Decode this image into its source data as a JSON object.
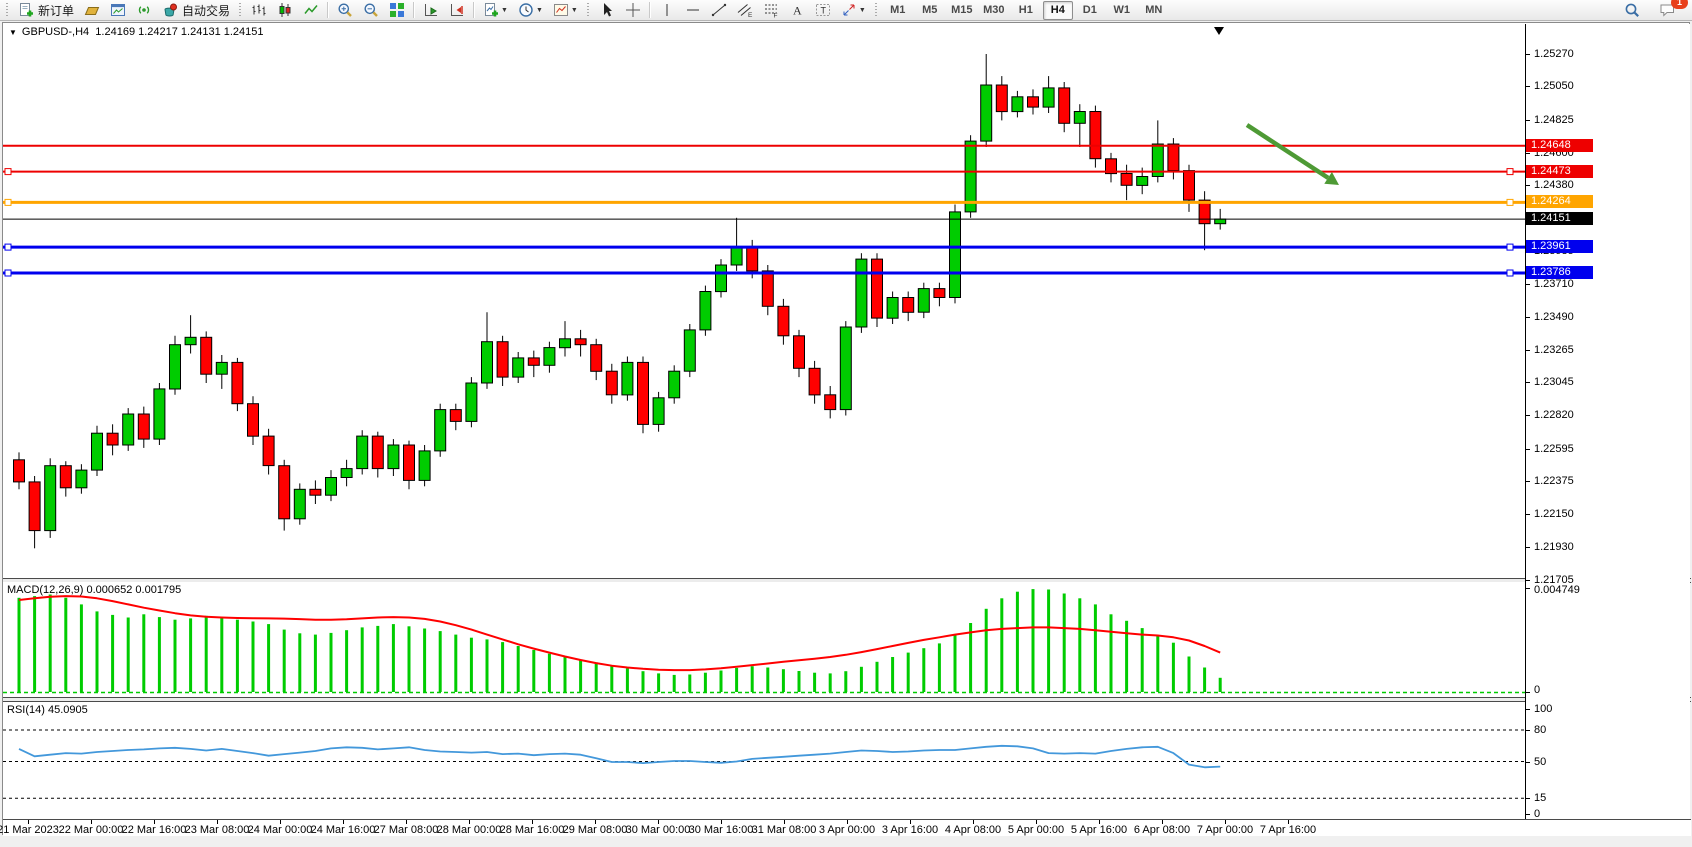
{
  "toolbar": {
    "groups": [
      {
        "items": [
          {
            "icon": "new-order",
            "label": "新订单"
          },
          {
            "icon": "profiles"
          },
          {
            "icon": "charts-window"
          },
          {
            "icon": "signal"
          },
          {
            "icon": "autotrading",
            "label": "自动交易"
          }
        ]
      },
      {
        "items": [
          {
            "icon": "chart-bars"
          },
          {
            "icon": "chart-candles"
          },
          {
            "icon": "chart-line"
          },
          {
            "sep": true
          },
          {
            "icon": "zoom-in"
          },
          {
            "icon": "zoom-out"
          },
          {
            "icon": "tile-windows"
          },
          {
            "sep": true
          },
          {
            "icon": "autoscroll"
          },
          {
            "icon": "chart-shift"
          },
          {
            "sep": true
          },
          {
            "icon": "new-chart",
            "dropdown": true
          },
          {
            "icon": "periods-clock",
            "dropdown": true
          },
          {
            "icon": "templates",
            "dropdown": true
          }
        ]
      },
      {
        "items": [
          {
            "icon": "cursor"
          },
          {
            "icon": "crosshair"
          },
          {
            "sep": true
          },
          {
            "icon": "vertical-line"
          },
          {
            "icon": "horizontal-line"
          },
          {
            "icon": "trendline"
          },
          {
            "icon": "equidistant-channel"
          },
          {
            "icon": "fibonacci"
          },
          {
            "icon": "text"
          },
          {
            "icon": "text-label"
          },
          {
            "icon": "arrows",
            "dropdown": true
          }
        ]
      }
    ],
    "timeframes": [
      {
        "label": "M1"
      },
      {
        "label": "M5"
      },
      {
        "label": "M15"
      },
      {
        "label": "M30"
      },
      {
        "label": "H1"
      },
      {
        "label": "H4",
        "active": true
      },
      {
        "label": "D1"
      },
      {
        "label": "W1"
      },
      {
        "label": "MN"
      }
    ],
    "right_icons": [
      {
        "icon": "search"
      },
      {
        "icon": "chat",
        "badge": "1"
      }
    ]
  },
  "chart_header": {
    "dropdown_glyph": "▼",
    "title": "GBPUSD-,H4",
    "ohlc_text": "1.24169 1.24217 1.24131 1.24151"
  },
  "chart_data": {
    "type": "candlestick",
    "symbol": "GBPUSD-",
    "timeframe": "H4",
    "ohlc": {
      "open": 1.24169,
      "high": 1.24217,
      "low": 1.24131,
      "close": 1.24151
    },
    "ylim": [
      1.21705,
      1.2527
    ],
    "y_ticks": [
      "1.25270",
      "1.25050",
      "1.24825",
      "1.24600",
      "1.24380",
      "1.24155",
      "1.23935",
      "1.23710",
      "1.23490",
      "1.23265",
      "1.23045",
      "1.22820",
      "1.22595",
      "1.22375",
      "1.22150",
      "1.21930",
      "1.21705"
    ],
    "x_labels": [
      "21 Mar 2023",
      "22 Mar 00:00",
      "22 Mar 16:00",
      "23 Mar 08:00",
      "24 Mar 00:00",
      "24 Mar 16:00",
      "27 Mar 08:00",
      "28 Mar 00:00",
      "28 Mar 16:00",
      "29 Mar 08:00",
      "30 Mar 00:00",
      "30 Mar 16:00",
      "31 Mar 08:00",
      "3 Apr 00:00",
      "3 Apr 16:00",
      "4 Apr 08:00",
      "5 Apr 00:00",
      "5 Apr 16:00",
      "6 Apr 08:00",
      "7 Apr 00:00",
      "7 Apr 16:00"
    ],
    "price_lines": [
      {
        "price": 1.24648,
        "label": "1.24648",
        "color": "#EE0000",
        "width": 2,
        "handles": false
      },
      {
        "price": 1.24473,
        "label": "1.24473",
        "color": "#EE0000",
        "width": 2,
        "handles": true
      },
      {
        "price": 1.24264,
        "label": "1.24264",
        "color": "#FFA500",
        "width": 3,
        "handles": true
      },
      {
        "price": 1.24151,
        "label": "1.24151",
        "color": "#000000",
        "width": 1,
        "handles": false,
        "role": "current-price"
      },
      {
        "price": 1.23961,
        "label": "1.23961",
        "color": "#0000EE",
        "width": 3,
        "handles": true
      },
      {
        "price": 1.23786,
        "label": "1.23786",
        "color": "#0000EE",
        "width": 3,
        "handles": true
      }
    ],
    "colors": {
      "bull": "#00CC00",
      "bear": "#FF0000",
      "outline": "#000000",
      "background": "#FFFFFF"
    },
    "candles": [
      [
        1.2252,
        1.2257,
        1.2232,
        1.2237
      ],
      [
        1.2237,
        1.2241,
        1.2192,
        1.2204
      ],
      [
        1.2204,
        1.2253,
        1.2199,
        1.2248
      ],
      [
        1.2248,
        1.2251,
        1.2227,
        1.2233
      ],
      [
        1.2233,
        1.2249,
        1.2229,
        1.2245
      ],
      [
        1.2245,
        1.2275,
        1.2241,
        1.227
      ],
      [
        1.227,
        1.2276,
        1.2255,
        1.2262
      ],
      [
        1.2262,
        1.2287,
        1.2258,
        1.2283
      ],
      [
        1.2283,
        1.2288,
        1.226,
        1.2266
      ],
      [
        1.2266,
        1.2304,
        1.2262,
        1.23
      ],
      [
        1.23,
        1.2336,
        1.2296,
        1.233
      ],
      [
        1.233,
        1.235,
        1.2324,
        1.2335
      ],
      [
        1.2335,
        1.2339,
        1.2304,
        1.231
      ],
      [
        1.231,
        1.2323,
        1.23,
        1.2318
      ],
      [
        1.2318,
        1.2321,
        1.2285,
        1.229
      ],
      [
        1.229,
        1.2295,
        1.2262,
        1.2268
      ],
      [
        1.2268,
        1.2273,
        1.2242,
        1.2248
      ],
      [
        1.2248,
        1.2252,
        1.2204,
        1.2212
      ],
      [
        1.2212,
        1.2236,
        1.2208,
        1.2232
      ],
      [
        1.2232,
        1.2238,
        1.2222,
        1.2228
      ],
      [
        1.2228,
        1.2245,
        1.2224,
        1.224
      ],
      [
        1.224,
        1.2252,
        1.2234,
        1.2246
      ],
      [
        1.2246,
        1.2272,
        1.2242,
        1.2268
      ],
      [
        1.2268,
        1.2271,
        1.224,
        1.2246
      ],
      [
        1.2246,
        1.2266,
        1.2241,
        1.2262
      ],
      [
        1.2262,
        1.2265,
        1.2232,
        1.2238
      ],
      [
        1.2238,
        1.2262,
        1.2234,
        1.2258
      ],
      [
        1.2258,
        1.229,
        1.2254,
        1.2286
      ],
      [
        1.2286,
        1.229,
        1.2272,
        1.2278
      ],
      [
        1.2278,
        1.2308,
        1.2274,
        1.2304
      ],
      [
        1.2304,
        1.2352,
        1.23,
        1.2332
      ],
      [
        1.2332,
        1.2336,
        1.2302,
        1.2308
      ],
      [
        1.2308,
        1.2325,
        1.2304,
        1.2321
      ],
      [
        1.2321,
        1.2326,
        1.2308,
        1.2316
      ],
      [
        1.2316,
        1.2332,
        1.2311,
        1.2328
      ],
      [
        1.2328,
        1.2346,
        1.2322,
        1.2334
      ],
      [
        1.2334,
        1.234,
        1.2322,
        1.233
      ],
      [
        1.233,
        1.2334,
        1.2306,
        1.2312
      ],
      [
        1.2312,
        1.2317,
        1.229,
        1.2296
      ],
      [
        1.2296,
        1.2322,
        1.2292,
        1.2318
      ],
      [
        1.2318,
        1.2322,
        1.227,
        1.2276
      ],
      [
        1.2276,
        1.2298,
        1.2271,
        1.2294
      ],
      [
        1.2294,
        1.2316,
        1.229,
        1.2312
      ],
      [
        1.2312,
        1.2344,
        1.2308,
        1.234
      ],
      [
        1.234,
        1.237,
        1.2336,
        1.2366
      ],
      [
        1.2366,
        1.2388,
        1.2362,
        1.2384
      ],
      [
        1.2384,
        1.2416,
        1.238,
        1.2396
      ],
      [
        1.2396,
        1.2401,
        1.2375,
        1.238
      ],
      [
        1.238,
        1.2384,
        1.235,
        1.2356
      ],
      [
        1.2356,
        1.2361,
        1.233,
        1.2336
      ],
      [
        1.2336,
        1.234,
        1.2308,
        1.2314
      ],
      [
        1.2314,
        1.2319,
        1.229,
        1.2296
      ],
      [
        1.2296,
        1.2302,
        1.228,
        1.2286
      ],
      [
        1.2286,
        1.2346,
        1.2282,
        1.2342
      ],
      [
        1.2342,
        1.2392,
        1.2338,
        1.2388
      ],
      [
        1.2388,
        1.2392,
        1.2342,
        1.2348
      ],
      [
        1.2348,
        1.2366,
        1.2344,
        1.2362
      ],
      [
        1.2362,
        1.2366,
        1.2346,
        1.2352
      ],
      [
        1.2352,
        1.2372,
        1.2348,
        1.2368
      ],
      [
        1.2368,
        1.2372,
        1.2356,
        1.2362
      ],
      [
        1.2362,
        1.2425,
        1.2358,
        1.242
      ],
      [
        1.242,
        1.2472,
        1.2416,
        1.2468
      ],
      [
        1.2468,
        1.2527,
        1.2464,
        1.2506
      ],
      [
        1.2506,
        1.2512,
        1.2482,
        1.2488
      ],
      [
        1.2488,
        1.2502,
        1.2484,
        1.2498
      ],
      [
        1.2498,
        1.2503,
        1.2486,
        1.2491
      ],
      [
        1.2491,
        1.2512,
        1.2487,
        1.2504
      ],
      [
        1.2504,
        1.2508,
        1.2474,
        1.248
      ],
      [
        1.248,
        1.2493,
        1.2464,
        1.2488
      ],
      [
        1.2488,
        1.2492,
        1.245,
        1.2456
      ],
      [
        1.2456,
        1.246,
        1.244,
        1.2446
      ],
      [
        1.2446,
        1.2452,
        1.2428,
        1.2438
      ],
      [
        1.2438,
        1.245,
        1.2432,
        1.2444
      ],
      [
        1.2444,
        1.2482,
        1.244,
        1.2466
      ],
      [
        1.2466,
        1.247,
        1.2442,
        1.2448
      ],
      [
        1.2448,
        1.2452,
        1.242,
        1.2428
      ],
      [
        1.2428,
        1.2434,
        1.2394,
        1.2412
      ],
      [
        1.2412,
        1.2422,
        1.2408,
        1.24151
      ]
    ],
    "macd": {
      "label": "MACD(12,26,9) 0.000652 0.001795",
      "params": [
        12,
        26,
        9
      ],
      "current_macd": 0.000652,
      "current_signal": 0.001795,
      "ymax": 0.004749,
      "axis_labels": [
        "0.004749",
        "0"
      ],
      "histogram_color": "#00CC00",
      "signal_color": "#FF0000",
      "histogram": [
        0.0043,
        0.00438,
        0.00445,
        0.0043,
        0.004,
        0.00368,
        0.00352,
        0.0034,
        0.00355,
        0.00342,
        0.0033,
        0.00336,
        0.00348,
        0.00342,
        0.0033,
        0.00322,
        0.0031,
        0.00285,
        0.00268,
        0.00262,
        0.0027,
        0.00282,
        0.00295,
        0.00302,
        0.0031,
        0.003,
        0.0029,
        0.00278,
        0.00262,
        0.00248,
        0.0024,
        0.00228,
        0.0021,
        0.00192,
        0.00175,
        0.0016,
        0.00148,
        0.00135,
        0.0012,
        0.00108,
        0.00095,
        0.00085,
        0.00078,
        0.0008,
        0.00088,
        0.00098,
        0.0011,
        0.00118,
        0.00112,
        0.00104,
        0.00096,
        0.00088,
        0.00085,
        0.00095,
        0.00115,
        0.00138,
        0.0016,
        0.0018,
        0.002,
        0.00222,
        0.0026,
        0.00315,
        0.0038,
        0.00428,
        0.00458,
        0.0047,
        0.00468,
        0.0045,
        0.00428,
        0.004,
        0.00355,
        0.00325,
        0.00292,
        0.00258,
        0.00225,
        0.00162,
        0.00112,
        0.00065
      ],
      "signal": [
        0.0042,
        0.00428,
        0.00435,
        0.00438,
        0.00436,
        0.00428,
        0.00415,
        0.004,
        0.00385,
        0.00372,
        0.0036,
        0.0035,
        0.00344,
        0.0034,
        0.00338,
        0.00337,
        0.00336,
        0.00335,
        0.00333,
        0.0033,
        0.0033,
        0.00332,
        0.00336,
        0.0034,
        0.00342,
        0.0034,
        0.00334,
        0.00322,
        0.00305,
        0.00285,
        0.00262,
        0.0024,
        0.00218,
        0.00198,
        0.0018,
        0.00162,
        0.00146,
        0.00132,
        0.0012,
        0.00112,
        0.00106,
        0.00102,
        0.001,
        0.001,
        0.00103,
        0.00108,
        0.00115,
        0.00123,
        0.0013,
        0.00138,
        0.00145,
        0.00152,
        0.0016,
        0.0017,
        0.00182,
        0.00196,
        0.0021,
        0.00224,
        0.00238,
        0.0025,
        0.00262,
        0.00272,
        0.00282,
        0.00288,
        0.00292,
        0.00295,
        0.00295,
        0.00292,
        0.00288,
        0.00282,
        0.00275,
        0.00268,
        0.00262,
        0.00258,
        0.0025,
        0.00235,
        0.0021,
        0.0018
      ]
    },
    "rsi": {
      "label": "RSI(14) 45.0905",
      "period": 14,
      "current": 45.0905,
      "range": [
        0,
        100
      ],
      "levels": [
        80,
        50,
        15
      ],
      "axis_labels": [
        "100",
        "80",
        "50",
        "15",
        "0"
      ],
      "color": "#4398DB",
      "values": [
        62,
        55,
        56.5,
        58,
        57.5,
        59,
        60,
        61,
        61.5,
        62.5,
        63,
        62,
        60.5,
        62,
        60,
        58,
        55.5,
        57,
        58.5,
        60,
        62.5,
        63.5,
        63,
        61.5,
        62.5,
        63.5,
        61,
        59.5,
        59,
        58.5,
        59,
        57,
        57.5,
        56,
        57,
        57.5,
        56.5,
        53,
        49.5,
        49.5,
        48.5,
        49.5,
        50.5,
        50.5,
        49.5,
        48.8,
        50,
        52.5,
        53.5,
        54.5,
        55.5,
        56.5,
        57.5,
        59,
        60.5,
        60,
        59,
        59.5,
        60.5,
        61,
        61,
        62.5,
        64,
        65,
        64.5,
        62.5,
        58,
        57.5,
        58,
        57.5,
        60,
        62,
        63.5,
        64,
        58,
        47,
        44.5,
        45.1
      ]
    },
    "annotations": [
      {
        "type": "arrow",
        "from": [
          1246,
          124
        ],
        "to": [
          1338,
          184
        ],
        "color": "#4E9A35"
      }
    ],
    "shift_marker_x": 1218
  }
}
